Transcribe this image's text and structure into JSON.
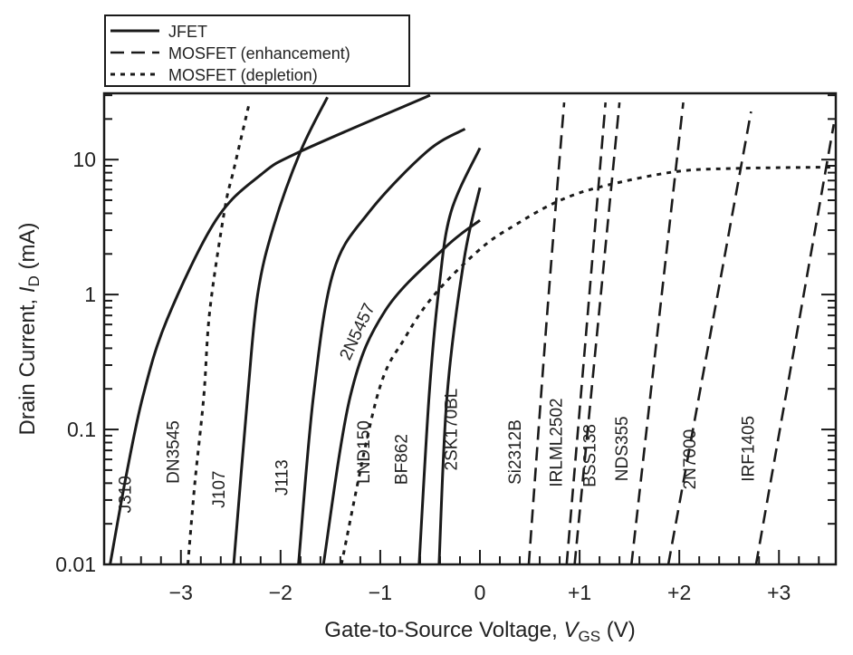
{
  "chart_data": {
    "type": "line",
    "title": "",
    "xlabel": "Gate-to-Source Voltage, V_GS (V)",
    "xlabel_parts": {
      "pre": "Gate-to-Source Voltage, ",
      "var": "V",
      "sub": "GS",
      "post": " (V)"
    },
    "ylabel": "Drain Current, I_D (mA)",
    "ylabel_parts": {
      "pre": "Drain Current, ",
      "var": "I",
      "sub": "D",
      "post": " (mA)"
    },
    "xlim": [
      -3.77,
      3.57
    ],
    "ylim": [
      0.01,
      31
    ],
    "yscale": "log",
    "grid": false,
    "x_ticks": [
      {
        "value": -3,
        "label": "−3"
      },
      {
        "value": -2,
        "label": "−2"
      },
      {
        "value": -1,
        "label": "−1"
      },
      {
        "value": 0,
        "label": "0"
      },
      {
        "value": 1,
        "label": "+1"
      },
      {
        "value": 2,
        "label": "+2"
      },
      {
        "value": 3,
        "label": "+3"
      }
    ],
    "y_ticks": [
      {
        "value": 0.01,
        "label": "0.01"
      },
      {
        "value": 0.1,
        "label": "0.1"
      },
      {
        "value": 1,
        "label": "1"
      },
      {
        "value": 10,
        "label": "10"
      }
    ],
    "legend": {
      "placement": "top-left, above plot",
      "entries": [
        {
          "label": "JFET",
          "style": "solid"
        },
        {
          "label": "MOSFET (enhancement)",
          "style": "dashed"
        },
        {
          "label": "MOSFET (depletion)",
          "style": "dotted"
        }
      ]
    },
    "series": [
      {
        "name": "J310",
        "style": "solid",
        "x": [
          -3.71,
          -3.55,
          -3.38,
          -3.14,
          -2.65,
          -2.2,
          -1.8,
          -0.5
        ],
        "y": [
          0.01,
          0.045,
          0.177,
          0.65,
          3.55,
          7.7,
          11.5,
          30
        ],
        "label_at": [
          -3.5,
          0.033
        ],
        "label_angle": -90
      },
      {
        "name": "DN3545",
        "style": "dotted",
        "x": [
          -2.93,
          -2.86,
          -2.77,
          -2.71,
          -2.56,
          -2.47,
          -2.31
        ],
        "y": [
          0.01,
          0.04,
          0.177,
          0.76,
          4.3,
          8.4,
          27
        ],
        "label_at": [
          -3.02,
          0.068
        ],
        "label_angle": -90
      },
      {
        "name": "J107",
        "style": "solid",
        "x": [
          -2.47,
          -2.33,
          -2.23,
          -2.07,
          -1.8,
          -1.53
        ],
        "y": [
          0.01,
          0.177,
          1.0,
          3.2,
          11.5,
          29
        ],
        "label_at": [
          -2.56,
          0.036
        ],
        "label_angle": -90
      },
      {
        "name": "J113",
        "style": "solid",
        "x": [
          -1.82,
          -1.67,
          -1.47,
          -1.11,
          -0.53,
          -0.15
        ],
        "y": [
          0.01,
          0.177,
          1.47,
          4.1,
          11.5,
          16.9
        ],
        "label_at": [
          -1.93,
          0.044
        ],
        "label_angle": -90
      },
      {
        "name": "2N5457",
        "style": "solid",
        "x": [
          -1.57,
          -1.3,
          -0.95,
          -0.35,
          0
        ],
        "y": [
          0.01,
          0.177,
          0.76,
          2.23,
          3.55
        ],
        "label_at": [
          -1.18,
          0.51
        ],
        "label_angle": -65
      },
      {
        "name": "LND150",
        "style": "dotted",
        "x": [
          -1.39,
          -1.03,
          -0.75,
          -0.44,
          0.02,
          0.36,
          0.755,
          1.18,
          1.94,
          2.55,
          3.57
        ],
        "y": [
          0.01,
          0.177,
          0.48,
          1.03,
          2.23,
          3.3,
          4.8,
          6.2,
          8.1,
          8.6,
          8.8
        ],
        "label_at": [
          -1.11,
          0.068
        ],
        "label_angle": -90
      },
      {
        "name": "BF862",
        "style": "solid",
        "x": [
          -0.61,
          -0.51,
          -0.41,
          -0.29,
          0
        ],
        "y": [
          0.01,
          0.177,
          1.13,
          4.1,
          12.2
        ],
        "label_at": [
          -0.73,
          0.06
        ],
        "label_angle": -90
      },
      {
        "name": "2SK170BL",
        "style": "solid",
        "x": [
          -0.41,
          -0.33,
          -0.16,
          0
        ],
        "y": [
          0.01,
          0.177,
          1.8,
          6.2
        ],
        "label_at": [
          -0.23,
          0.1
        ],
        "label_angle": -90
      },
      {
        "name": "Si2312B",
        "style": "dashed",
        "x": [
          0.49,
          0.67,
          0.845
        ],
        "y": [
          0.01,
          0.65,
          26.5
        ],
        "label_at": [
          0.41,
          0.068
        ],
        "label_angle": -90
      },
      {
        "name": "IRLML2502",
        "style": "dashed",
        "x": [
          0.87,
          1.26
        ],
        "y": [
          0.01,
          26.5
        ],
        "label_at": [
          0.82,
          0.08
        ],
        "label_angle": -90
      },
      {
        "name": "BSS138",
        "style": "dashed",
        "x": [
          0.95,
          1.4
        ],
        "y": [
          0.01,
          26.5
        ],
        "label_at": [
          1.16,
          0.064
        ],
        "label_angle": -90
      },
      {
        "name": "NDS355",
        "style": "dashed",
        "x": [
          1.52,
          2.04
        ],
        "y": [
          0.01,
          26.5
        ],
        "label_at": [
          1.48,
          0.072
        ],
        "label_angle": -90
      },
      {
        "name": "2N7000",
        "style": "dashed",
        "x": [
          1.89,
          2.72
        ],
        "y": [
          0.01,
          22.7
        ],
        "label_at": [
          2.16,
          0.06
        ],
        "label_angle": -90
      },
      {
        "name": "IRF1405",
        "style": "dashed",
        "x": [
          2.77,
          3.55
        ],
        "y": [
          0.01,
          18.3
        ],
        "label_at": [
          2.75,
          0.072
        ],
        "label_angle": -90
      }
    ],
    "colors": {
      "ink": "#1a1a1a"
    }
  }
}
